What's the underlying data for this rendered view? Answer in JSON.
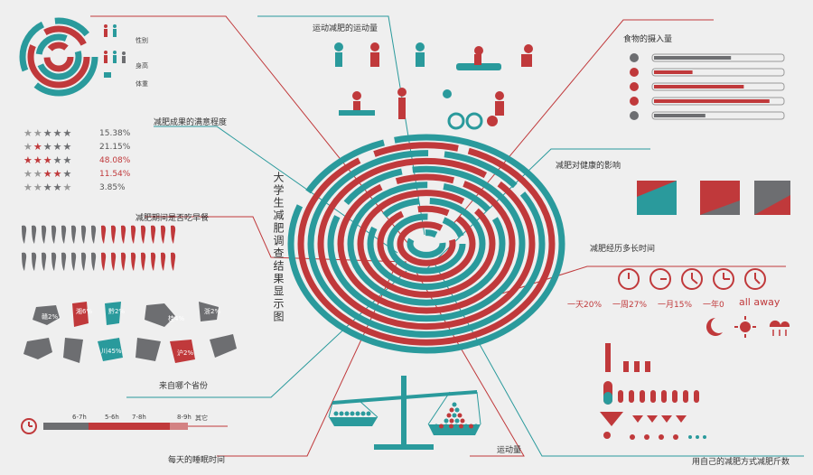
{
  "title_vertical": "大学生减肥调查结果显示图",
  "sections": {
    "exercise": "运动减肥的运动量",
    "food": "食物的摄入量",
    "satisfaction": "减肥成果的满意程度",
    "health": "减肥对健康的影响",
    "breakfast": "减肥期间是否吃早餐",
    "duration": "减肥经历多长时间",
    "province": "来自哪个省份",
    "methods": "用自己的减肥方式减肥斤数",
    "sleep": "每天的睡眠时间",
    "amount": "运动量"
  },
  "gender_legend": {
    "gender": "性别",
    "height": "身高",
    "weight": "体重"
  },
  "satisfaction": [
    {
      "pct": "15.38%"
    },
    {
      "pct": "21.15%"
    },
    {
      "pct": "48.08%"
    },
    {
      "pct": "11.54%"
    },
    {
      "pct": "3.85%"
    }
  ],
  "duration": [
    {
      "label": "一天20%"
    },
    {
      "label": "一周27%"
    },
    {
      "label": "一月15%"
    },
    {
      "label": "一年0"
    },
    {
      "label": "all away"
    }
  ],
  "provinces": [
    "赣2%",
    "湘6%",
    "黔2%",
    "桂4%",
    "冀1%",
    "浙2%",
    "新",
    "川45%",
    "",
    "沪2%"
  ],
  "sleep_ticks": [
    "6-7h",
    "5-6h",
    "7-8h",
    "8-9h",
    "其它"
  ],
  "health_boxes": [
    "",
    "",
    ""
  ],
  "colors": {
    "red": "#c0393b",
    "teal": "#2a9a9c",
    "gray": "#6d6e71",
    "light": "#efefef"
  },
  "chart_data": {
    "type": "other",
    "satisfaction_percentages": [
      15.38,
      21.15,
      48.08,
      11.54,
      3.85
    ],
    "duration_percentages": {
      "一天": 20,
      "一周": 27,
      "一月": 15,
      "一年": 0
    }
  }
}
